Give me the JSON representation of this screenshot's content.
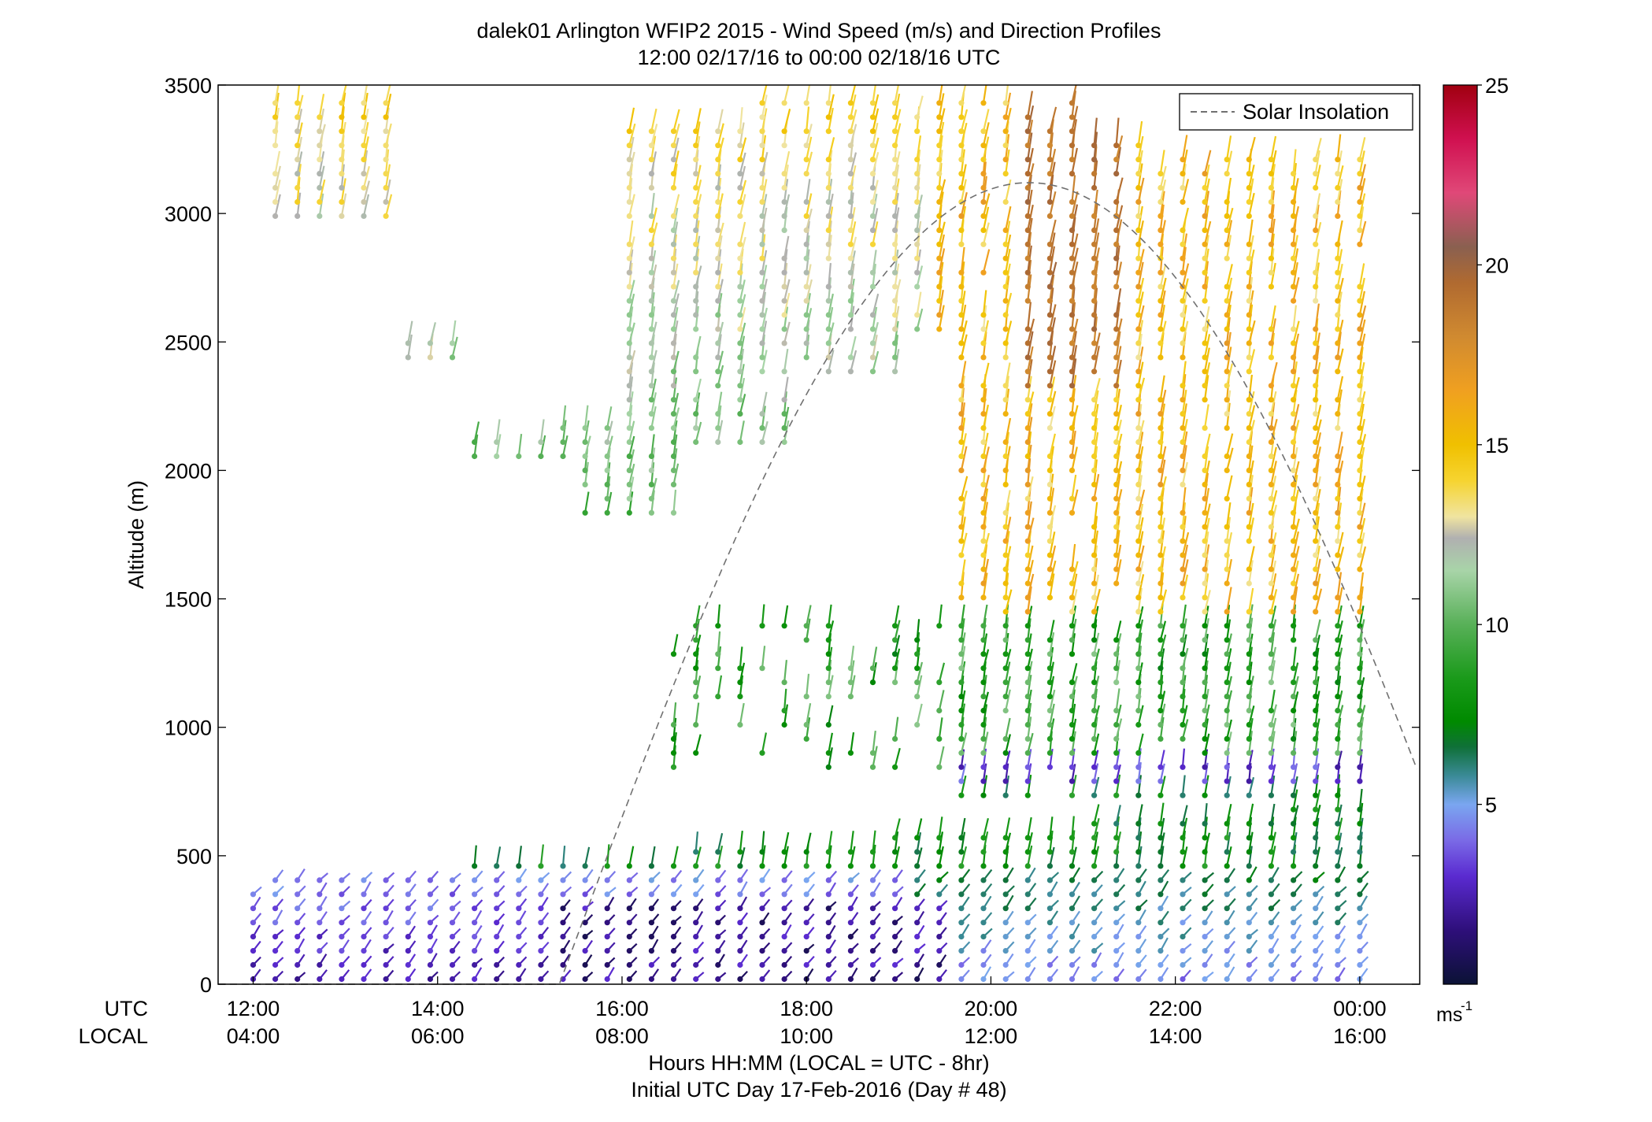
{
  "chart_data": {
    "type": "scatter",
    "title": "dalek01 Arlington WFIP2 2015 - Wind Speed (m/s) and Direction Profiles",
    "subtitle": "12:00 02/17/16 to 00:00 02/18/16  UTC",
    "ylabel": "Altitude (m)",
    "ylim": [
      0,
      3500
    ],
    "y_ticks": [
      "0",
      "500",
      "1000",
      "1500",
      "2000",
      "2500",
      "3000",
      "3500"
    ],
    "xlim_hours_utc": [
      11.62,
      24.65
    ],
    "x_row_label_utc": "UTC",
    "x_row_label_local": "LOCAL",
    "x_ticks_utc": [
      "12:00",
      "14:00",
      "16:00",
      "18:00",
      "20:00",
      "22:00",
      "00:00"
    ],
    "x_ticks_local": [
      "04:00",
      "06:00",
      "08:00",
      "10:00",
      "12:00",
      "14:00",
      "16:00"
    ],
    "xlabel": "Hours HH:MM  (LOCAL = UTC - 8hr)",
    "xlabel2": "Initial UTC Day 17-Feb-2016 (Day # 48)",
    "legend": {
      "entries": [
        "Solar Insolation"
      ],
      "placement": "top-right"
    },
    "colorbar": {
      "ticks": [
        "5",
        "10",
        "15",
        "20",
        "25"
      ],
      "range": [
        0,
        25
      ],
      "unit_label": "ms",
      "unit_exponent": "-1",
      "stops": [
        [
          0,
          "#0b1236"
        ],
        [
          1.5,
          "#2e0f7a"
        ],
        [
          3,
          "#5a2ad0"
        ],
        [
          4,
          "#7a6ae6"
        ],
        [
          5,
          "#7aa6f0"
        ],
        [
          5.8,
          "#3a8a96"
        ],
        [
          6.6,
          "#0f7038"
        ],
        [
          7.3,
          "#008a00"
        ],
        [
          8.5,
          "#1a9a1a"
        ],
        [
          10,
          "#58b058"
        ],
        [
          11.5,
          "#a8d4a8"
        ],
        [
          12.4,
          "#b0b0b0"
        ],
        [
          13,
          "#f0e4a0"
        ],
        [
          14,
          "#f6d430"
        ],
        [
          15,
          "#f0c000"
        ],
        [
          16.5,
          "#f0a020"
        ],
        [
          18,
          "#d08a30"
        ],
        [
          19.5,
          "#b06a30"
        ],
        [
          20.5,
          "#8a6050"
        ],
        [
          22,
          "#e04878"
        ],
        [
          23.5,
          "#d01050"
        ],
        [
          25,
          "#a00010"
        ]
      ]
    },
    "solar_insolation": {
      "sunrise_hour_utc": 15.32,
      "sunset_hour_utc": 25.5,
      "peak_altitude_m": 3120
    },
    "series": [
      {
        "name": "Solar Insolation",
        "style": "dashed",
        "color": "#707070"
      }
    ]
  }
}
